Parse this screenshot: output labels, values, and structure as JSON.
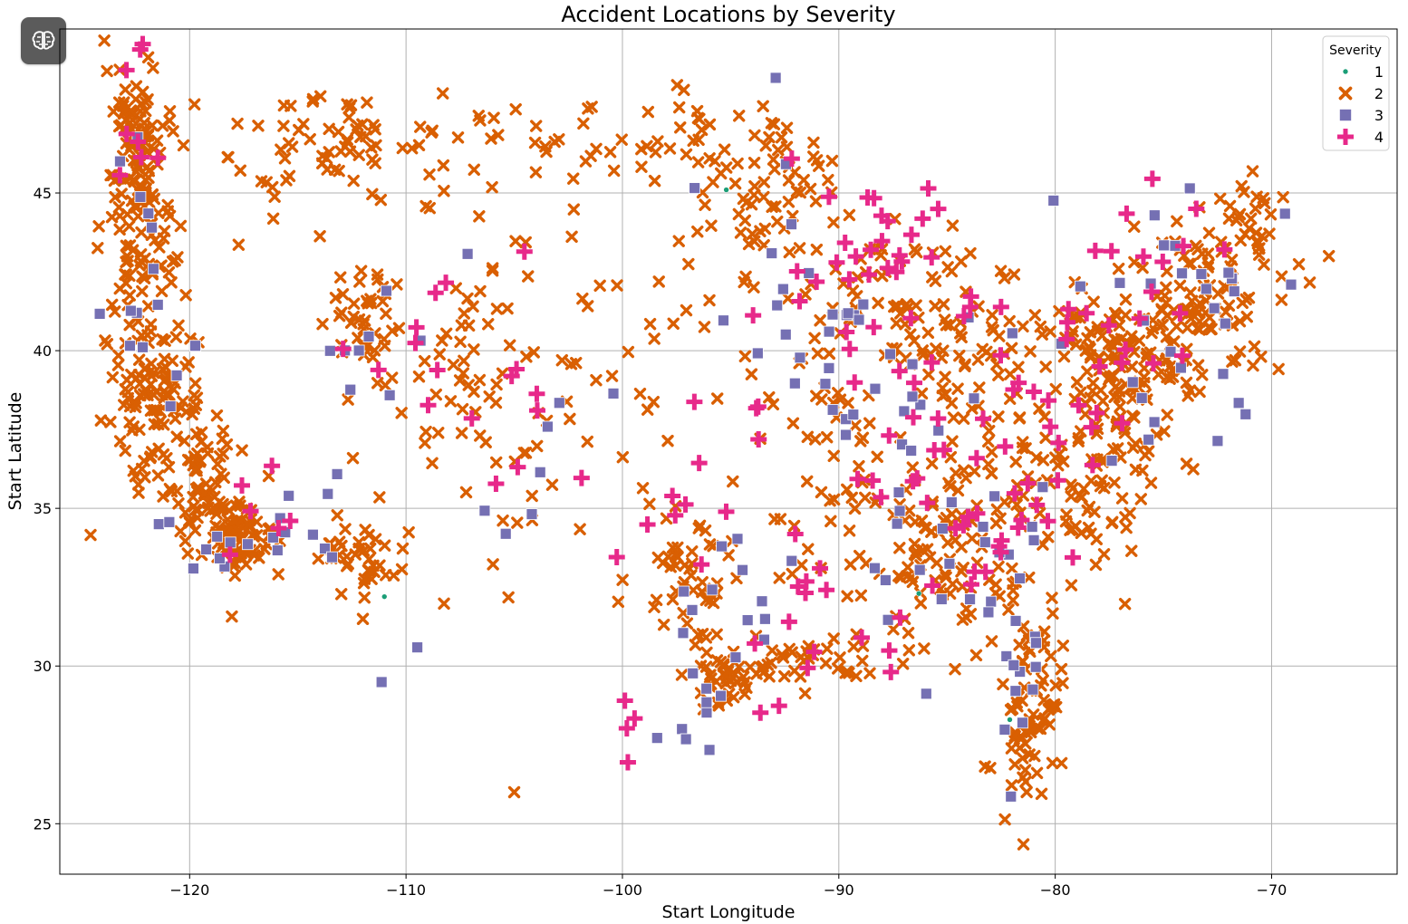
{
  "app": {
    "badge_icon": "brain-icon"
  },
  "chart_data": {
    "type": "scatter",
    "title": "Accident Locations by Severity",
    "xlabel": "Start Longitude",
    "ylabel": "Start Latitude",
    "xlim": [
      -126.0,
      -64.2
    ],
    "ylim": [
      23.4,
      50.2
    ],
    "xticks": [
      -120,
      -110,
      -100,
      -90,
      -80,
      -70
    ],
    "yticks": [
      25,
      30,
      35,
      40,
      45
    ],
    "xtick_labels": [
      "−120",
      "−110",
      "−100",
      "−90",
      "−80",
      "−70"
    ],
    "ytick_labels": [
      "25",
      "30",
      "35",
      "40",
      "45"
    ],
    "grid": true,
    "legend": {
      "title": "Severity",
      "placement": "top-right"
    },
    "series": [
      {
        "name": "1",
        "marker": "circle",
        "color": "#1b9e77",
        "points": [
          [
            -95.2,
            45.1
          ],
          [
            -86.3,
            32.3
          ],
          [
            -82.1,
            28.3
          ],
          [
            -111.0,
            32.2
          ]
        ]
      },
      {
        "name": "2",
        "marker": "x",
        "color": "#d95f02",
        "clusters": [
          {
            "cx": -122.5,
            "cy": 47.5,
            "sx": 0.7,
            "sy": 0.8,
            "n": 50
          },
          {
            "cx": -122.5,
            "cy": 45.3,
            "sx": 0.9,
            "sy": 0.9,
            "n": 60
          },
          {
            "cx": -122.0,
            "cy": 42.8,
            "sx": 1.0,
            "sy": 1.2,
            "n": 50
          },
          {
            "cx": -121.6,
            "cy": 38.7,
            "sx": 1.1,
            "sy": 1.3,
            "n": 110
          },
          {
            "cx": -119.5,
            "cy": 36.2,
            "sx": 1.0,
            "sy": 1.0,
            "n": 60
          },
          {
            "cx": -117.8,
            "cy": 34.0,
            "sx": 1.1,
            "sy": 0.6,
            "n": 90
          },
          {
            "cx": -112.0,
            "cy": 33.4,
            "sx": 0.9,
            "sy": 0.6,
            "n": 40
          },
          {
            "cx": -111.9,
            "cy": 40.8,
            "sx": 0.8,
            "sy": 1.1,
            "n": 40
          },
          {
            "cx": -114.5,
            "cy": 46.5,
            "sx": 2.5,
            "sy": 1.2,
            "n": 50
          },
          {
            "cx": -106.5,
            "cy": 39.5,
            "sx": 1.8,
            "sy": 2.0,
            "n": 50
          },
          {
            "cx": -96.8,
            "cy": 32.8,
            "sx": 0.8,
            "sy": 0.8,
            "n": 40
          },
          {
            "cx": -95.4,
            "cy": 29.8,
            "sx": 0.8,
            "sy": 0.5,
            "n": 40
          },
          {
            "cx": -93.5,
            "cy": 45.0,
            "sx": 1.6,
            "sy": 1.4,
            "n": 70
          },
          {
            "cx": -88.0,
            "cy": 41.8,
            "sx": 1.8,
            "sy": 1.2,
            "n": 60
          },
          {
            "cx": -90.0,
            "cy": 36.0,
            "sx": 2.5,
            "sy": 2.5,
            "n": 60
          },
          {
            "cx": -85.0,
            "cy": 33.8,
            "sx": 1.8,
            "sy": 1.6,
            "n": 100
          },
          {
            "cx": -81.2,
            "cy": 28.5,
            "sx": 0.7,
            "sy": 1.5,
            "n": 80
          },
          {
            "cx": -78.5,
            "cy": 36.5,
            "sx": 1.8,
            "sy": 2.0,
            "n": 120
          },
          {
            "cx": -76.5,
            "cy": 40.0,
            "sx": 1.6,
            "sy": 1.2,
            "n": 120
          },
          {
            "cx": -73.0,
            "cy": 42.0,
            "sx": 1.8,
            "sy": 1.2,
            "n": 80
          },
          {
            "cx": -84.0,
            "cy": 39.5,
            "sx": 1.8,
            "sy": 1.5,
            "n": 60
          },
          {
            "cx": -100.0,
            "cy": 38.0,
            "sx": 6.0,
            "sy": 4.0,
            "n": 70
          },
          {
            "cx": -108.0,
            "cy": 46.5,
            "sx": 4.0,
            "sy": 1.0,
            "n": 40
          },
          {
            "cx": -98.0,
            "cy": 46.8,
            "sx": 2.5,
            "sy": 0.6,
            "n": 30
          },
          {
            "cx": -90.5,
            "cy": 30.3,
            "sx": 2.0,
            "sy": 0.4,
            "n": 40
          },
          {
            "cx": -70.5,
            "cy": 44.0,
            "sx": 1.2,
            "sy": 0.8,
            "n": 30
          }
        ]
      },
      {
        "name": "3",
        "marker": "square",
        "color": "#7570b3",
        "clusters": [
          {
            "cx": -122.0,
            "cy": 41.0,
            "sx": 1.2,
            "sy": 3.0,
            "n": 16
          },
          {
            "cx": -117.0,
            "cy": 34.0,
            "sx": 1.5,
            "sy": 0.8,
            "n": 14
          },
          {
            "cx": -112.0,
            "cy": 36.0,
            "sx": 1.5,
            "sy": 3.0,
            "n": 14
          },
          {
            "cx": -105.0,
            "cy": 38.0,
            "sx": 2.0,
            "sy": 3.0,
            "n": 8
          },
          {
            "cx": -96.0,
            "cy": 31.0,
            "sx": 1.5,
            "sy": 2.0,
            "n": 22
          },
          {
            "cx": -92.0,
            "cy": 42.0,
            "sx": 2.0,
            "sy": 2.0,
            "n": 16
          },
          {
            "cx": -88.0,
            "cy": 39.0,
            "sx": 2.0,
            "sy": 2.0,
            "n": 20
          },
          {
            "cx": -84.0,
            "cy": 34.0,
            "sx": 2.0,
            "sy": 2.0,
            "n": 26
          },
          {
            "cx": -81.0,
            "cy": 29.0,
            "sx": 0.8,
            "sy": 1.5,
            "n": 12
          },
          {
            "cx": -76.0,
            "cy": 40.0,
            "sx": 3.0,
            "sy": 2.0,
            "n": 22
          },
          {
            "cx": -72.0,
            "cy": 43.0,
            "sx": 1.5,
            "sy": 1.0,
            "n": 10
          }
        ]
      },
      {
        "name": "4",
        "marker": "plus",
        "color": "#e7298a",
        "clusters": [
          {
            "cx": -122.5,
            "cy": 46.5,
            "sx": 0.8,
            "sy": 1.2,
            "n": 8
          },
          {
            "cx": -107.5,
            "cy": 39.3,
            "sx": 2.5,
            "sy": 1.8,
            "n": 16
          },
          {
            "cx": -95.0,
            "cy": 35.0,
            "sx": 2.5,
            "sy": 3.0,
            "n": 20
          },
          {
            "cx": -88.5,
            "cy": 43.0,
            "sx": 2.5,
            "sy": 1.6,
            "n": 26
          },
          {
            "cx": -86.0,
            "cy": 39.5,
            "sx": 2.5,
            "sy": 2.0,
            "n": 22
          },
          {
            "cx": -83.5,
            "cy": 34.5,
            "sx": 2.0,
            "sy": 1.5,
            "n": 22
          },
          {
            "cx": -79.0,
            "cy": 39.0,
            "sx": 2.0,
            "sy": 2.0,
            "n": 22
          },
          {
            "cx": -75.0,
            "cy": 43.0,
            "sx": 2.0,
            "sy": 1.5,
            "n": 12
          },
          {
            "cx": -90.0,
            "cy": 31.0,
            "sx": 2.0,
            "sy": 1.0,
            "n": 10
          },
          {
            "cx": -99.0,
            "cy": 28.0,
            "sx": 0.8,
            "sy": 1.2,
            "n": 4
          },
          {
            "cx": -116.0,
            "cy": 34.0,
            "sx": 1.5,
            "sy": 1.5,
            "n": 6
          }
        ]
      }
    ]
  }
}
